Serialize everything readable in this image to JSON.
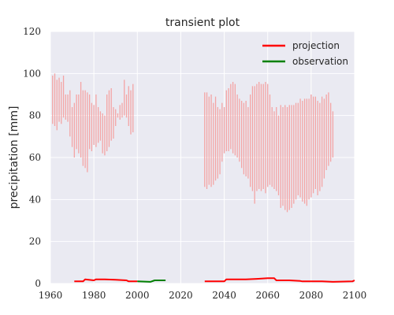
{
  "chart_data": {
    "type": "line",
    "title": "transient plot",
    "xlabel": "",
    "ylabel": "precipitation [mm]",
    "xlim": [
      1960,
      2100
    ],
    "ylim": [
      0,
      120
    ],
    "x_ticks": [
      1960,
      1980,
      2000,
      2020,
      2040,
      2060,
      2080,
      2100
    ],
    "y_ticks": [
      0,
      20,
      40,
      60,
      80,
      100,
      120
    ],
    "grid": true,
    "legend_position": "top-right",
    "colors": {
      "plot_bg": "#eaeaf2",
      "grid": "#ffffff",
      "projection": "#ff0000",
      "observation": "#008000",
      "spread": "#f4a4a4"
    },
    "series": [
      {
        "name": "projection",
        "color": "#ff0000",
        "segments": [
          [
            [
              1971,
              1.0
            ],
            [
              1975,
              1.0
            ],
            [
              1976,
              2.0
            ],
            [
              1980,
              1.5
            ],
            [
              1981,
              2.0
            ],
            [
              1985,
              2.0
            ],
            [
              1990,
              1.8
            ],
            [
              1995,
              1.5
            ],
            [
              1996,
              1.0
            ],
            [
              2000,
              1.0
            ]
          ],
          [
            [
              2031,
              1.0
            ],
            [
              2035,
              1.0
            ],
            [
              2040,
              1.0
            ],
            [
              2041,
              2.0
            ],
            [
              2050,
              2.0
            ],
            [
              2055,
              2.2
            ],
            [
              2060,
              2.5
            ],
            [
              2063,
              2.5
            ],
            [
              2064,
              1.5
            ],
            [
              2070,
              1.5
            ],
            [
              2075,
              1.2
            ],
            [
              2076,
              1.0
            ],
            [
              2085,
              1.0
            ],
            [
              2090,
              0.8
            ],
            [
              2099,
              1.0
            ],
            [
              2100,
              1.5
            ]
          ]
        ]
      },
      {
        "name": "observation",
        "color": "#008000",
        "segments": [
          [
            [
              2000,
              1.0
            ],
            [
              2006,
              0.8
            ],
            [
              2008,
              1.5
            ],
            [
              2013,
              1.5
            ]
          ]
        ]
      }
    ],
    "spread_series": {
      "name": "projection range",
      "color": "#f4a4a4",
      "ranges": [
        [
          1961,
          76,
          99
        ],
        [
          1962,
          75,
          100
        ],
        [
          1963,
          73,
          97
        ],
        [
          1964,
          77,
          98
        ],
        [
          1965,
          76,
          96
        ],
        [
          1966,
          79,
          99
        ],
        [
          1967,
          78,
          90
        ],
        [
          1968,
          77,
          90
        ],
        [
          1969,
          70,
          92
        ],
        [
          1970,
          65,
          84
        ],
        [
          1971,
          60,
          86
        ],
        [
          1972,
          64,
          90
        ],
        [
          1973,
          62,
          90
        ],
        [
          1974,
          60,
          96
        ],
        [
          1975,
          56,
          92
        ],
        [
          1976,
          55,
          92
        ],
        [
          1977,
          53,
          91
        ],
        [
          1978,
          64,
          90
        ],
        [
          1979,
          63,
          86
        ],
        [
          1980,
          66,
          85
        ],
        [
          1981,
          65,
          90
        ],
        [
          1982,
          67,
          84
        ],
        [
          1983,
          68,
          82
        ],
        [
          1984,
          62,
          81
        ],
        [
          1985,
          61,
          80
        ],
        [
          1986,
          63,
          90
        ],
        [
          1987,
          65,
          92
        ],
        [
          1988,
          68,
          93
        ],
        [
          1989,
          69,
          84
        ],
        [
          1990,
          75,
          83
        ],
        [
          1991,
          79,
          81
        ],
        [
          1992,
          78,
          85
        ],
        [
          1993,
          79,
          86
        ],
        [
          1994,
          80,
          97
        ],
        [
          1995,
          79,
          90
        ],
        [
          1996,
          75,
          94
        ],
        [
          1997,
          71,
          92
        ],
        [
          1998,
          72,
          95
        ],
        [
          2031,
          46,
          91
        ],
        [
          2032,
          45,
          91
        ],
        [
          2033,
          47,
          89
        ],
        [
          2034,
          46,
          90
        ],
        [
          2035,
          47,
          86
        ],
        [
          2036,
          49,
          89
        ],
        [
          2037,
          50,
          84
        ],
        [
          2038,
          52,
          83
        ],
        [
          2039,
          58,
          86
        ],
        [
          2040,
          62,
          84
        ],
        [
          2041,
          63,
          92
        ],
        [
          2042,
          63,
          93
        ],
        [
          2043,
          64,
          95
        ],
        [
          2044,
          62,
          96
        ],
        [
          2045,
          61,
          95
        ],
        [
          2046,
          60,
          90
        ],
        [
          2047,
          58,
          88
        ],
        [
          2048,
          55,
          87
        ],
        [
          2049,
          52,
          86
        ],
        [
          2050,
          51,
          87
        ],
        [
          2051,
          50,
          84
        ],
        [
          2052,
          46,
          90
        ],
        [
          2053,
          44,
          94
        ],
        [
          2054,
          38,
          94
        ],
        [
          2055,
          44,
          95
        ],
        [
          2056,
          45,
          96
        ],
        [
          2057,
          44,
          95
        ],
        [
          2058,
          45,
          95
        ],
        [
          2059,
          43,
          96
        ],
        [
          2060,
          46,
          95
        ],
        [
          2061,
          47,
          90
        ],
        [
          2062,
          46,
          84
        ],
        [
          2063,
          45,
          82
        ],
        [
          2064,
          44,
          84
        ],
        [
          2065,
          42,
          80
        ],
        [
          2066,
          36,
          85
        ],
        [
          2067,
          37,
          84
        ],
        [
          2068,
          35,
          85
        ],
        [
          2069,
          34,
          84
        ],
        [
          2070,
          35,
          85
        ],
        [
          2071,
          36,
          85
        ],
        [
          2072,
          38,
          85
        ],
        [
          2073,
          40,
          86
        ],
        [
          2074,
          42,
          86
        ],
        [
          2075,
          41,
          88
        ],
        [
          2076,
          39,
          87
        ],
        [
          2077,
          38,
          88
        ],
        [
          2078,
          37,
          88
        ],
        [
          2079,
          40,
          88
        ],
        [
          2080,
          41,
          90
        ],
        [
          2081,
          43,
          89
        ],
        [
          2082,
          45,
          89
        ],
        [
          2083,
          42,
          87
        ],
        [
          2084,
          44,
          86
        ],
        [
          2085,
          46,
          89
        ],
        [
          2086,
          50,
          88
        ],
        [
          2087,
          54,
          90
        ],
        [
          2088,
          56,
          91
        ],
        [
          2089,
          58,
          86
        ],
        [
          2090,
          60,
          82
        ]
      ]
    }
  }
}
